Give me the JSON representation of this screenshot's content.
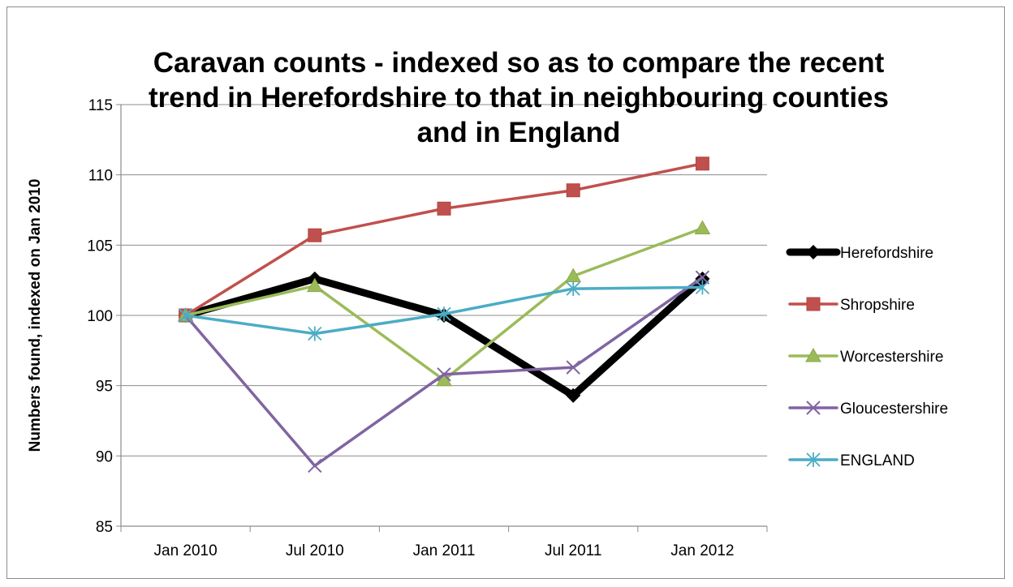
{
  "chart_data": {
    "type": "line",
    "title": "Caravan counts - indexed so as to compare the recent trend in Herefordshire to that in neighbouring counties and in England",
    "title_lines": [
      "Caravan counts - indexed so as to compare the recent",
      "trend in Herefordshire to that in neighbouring counties",
      "and in England"
    ],
    "xlabel": "",
    "ylabel": "Numbers found, indexed on Jan 2010",
    "categories": [
      "Jan 2010",
      "Jul 2010",
      "Jan 2011",
      "Jul 2011",
      "Jan 2012"
    ],
    "ylim": [
      85,
      115
    ],
    "yticks": [
      85,
      90,
      95,
      100,
      105,
      110,
      115
    ],
    "grid": "horizontal",
    "legend_position": "right",
    "series": [
      {
        "name": "Herefordshire",
        "values": [
          100,
          102.6,
          100,
          94.3,
          102.6
        ],
        "color": "#000000",
        "marker": "diamond",
        "weight": "heavy"
      },
      {
        "name": "Shropshire",
        "values": [
          100,
          105.7,
          107.6,
          108.9,
          110.8
        ],
        "color": "#c0504d",
        "marker": "square",
        "weight": "normal"
      },
      {
        "name": "Worcestershire",
        "values": [
          100,
          102.1,
          95.4,
          102.8,
          106.2
        ],
        "color": "#9bbb59",
        "marker": "triangle",
        "weight": "normal"
      },
      {
        "name": "Gloucestershire",
        "values": [
          100,
          89.3,
          95.8,
          96.3,
          102.7
        ],
        "color": "#8064a2",
        "marker": "x",
        "weight": "normal"
      },
      {
        "name": "ENGLAND",
        "values": [
          100,
          98.7,
          100.1,
          101.9,
          102.0
        ],
        "color": "#4bacc6",
        "marker": "star",
        "weight": "normal"
      }
    ]
  }
}
